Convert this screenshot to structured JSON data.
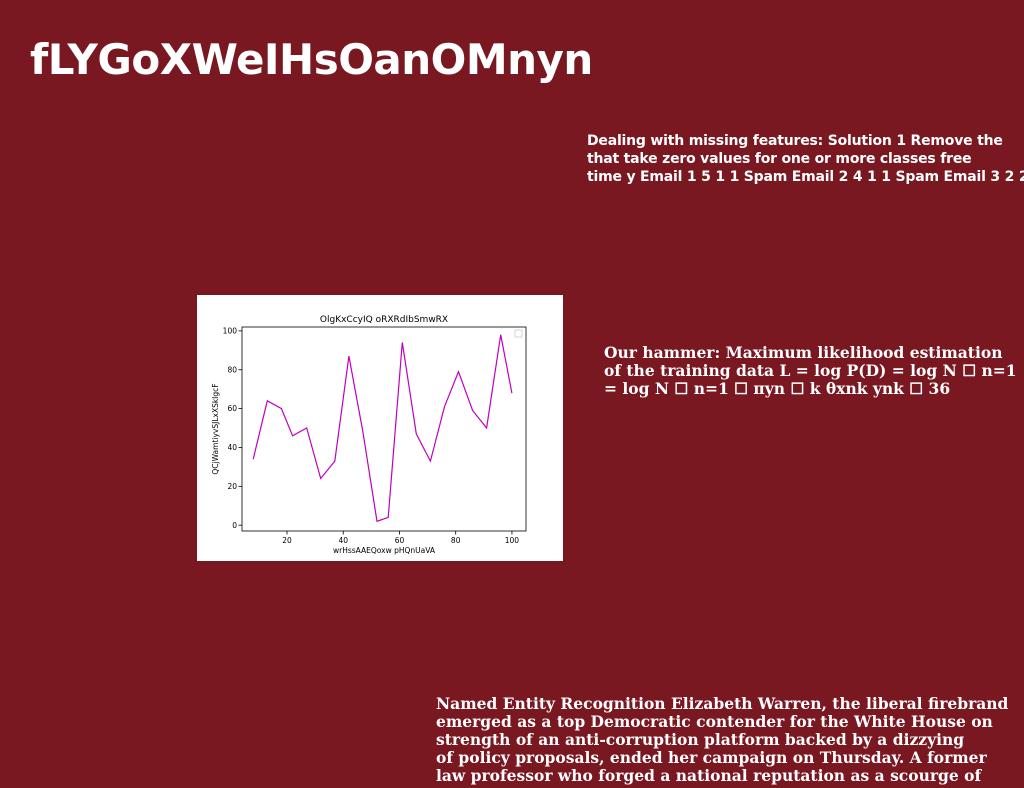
{
  "slide": {
    "title": "fLYGoXWeIHsOanOMnyn",
    "block1_lines": [
      "Dealing with missing features: Solution 1 Remove the",
      "that take zero values for one or more classes free",
      "time y Email 1 5 1 1 Spam Email 2 4 1 1 Spam Email 3 2 2"
    ],
    "block2_lines": [
      "Our hammer: Maximum likelihood estimation",
      "of the training data L = log P(D) = log N ☐ n=1",
      "= log N ☐ n=1 ☐ πyn ☐ k θxnk ynk ☐ 36"
    ],
    "block3_lines": [
      "Named Entity Recognition Elizabeth Warren, the liberal firebrand",
      "emerged as a top Democratic contender for the White House on",
      "strength of an anti-corruption platform backed by a dizzying",
      "of policy proposals, ended her campaign on Thursday. A former",
      "law professor who forged a national reputation as a scourge of"
    ]
  },
  "chart_data": {
    "type": "line",
    "title": "OlgKxCcyIQ oRXRdIbSmwRX",
    "xlabel": "wrHssAAEQoxw pHQnUaVA",
    "ylabel": "QCjWamtiyvSJLxXSkIgcF",
    "x": [
      8,
      13,
      18,
      22,
      27,
      32,
      37,
      42,
      47,
      52,
      56,
      61,
      66,
      71,
      76,
      81,
      86,
      91,
      96,
      100
    ],
    "series": [
      {
        "values": [
          34,
          64,
          60,
          46,
          50,
          24,
          33,
          87,
          48,
          2,
          4,
          94,
          47,
          33,
          61,
          79,
          59,
          50,
          98,
          68
        ],
        "color": "#bf00bf"
      }
    ],
    "xlim": [
      4,
      105
    ],
    "ylim": [
      -3,
      102
    ],
    "xticks": [
      "20",
      "40",
      "60",
      "80",
      "100"
    ],
    "yticks": [
      "0",
      "20",
      "40",
      "60",
      "80",
      "100"
    ],
    "grid": false,
    "legend": "top-right (empty)"
  }
}
